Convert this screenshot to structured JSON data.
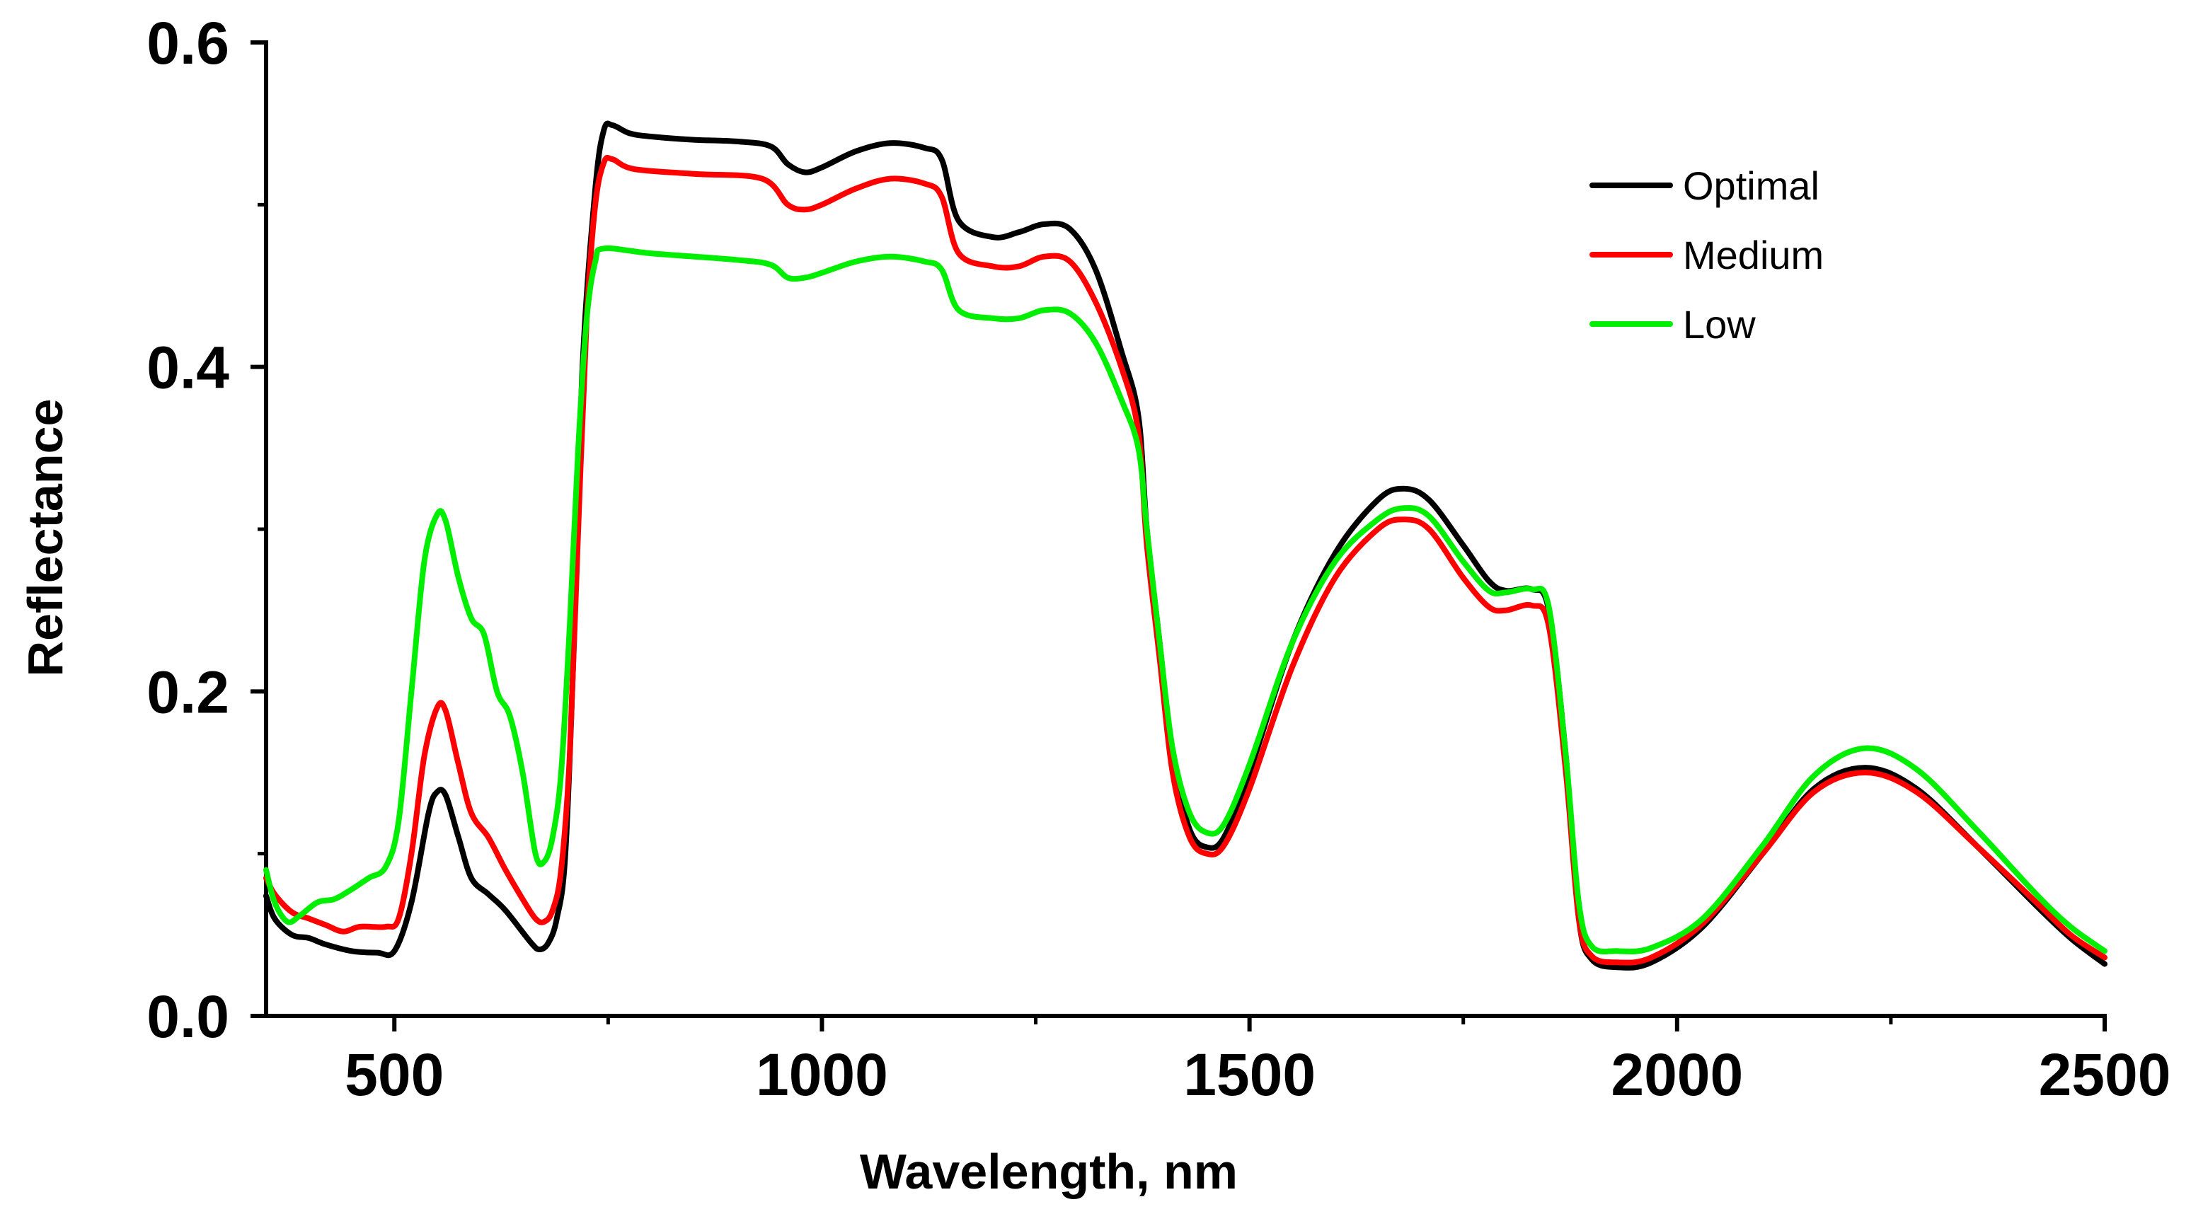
{
  "chart_data": {
    "type": "line",
    "title": "",
    "xlabel": "Wavelength, nm",
    "ylabel": "Reflectance",
    "xlim": [
      350,
      2500
    ],
    "ylim": [
      0.0,
      0.6
    ],
    "grid": false,
    "legend_position": "top-right",
    "x_ticks": [
      500,
      1000,
      1500,
      2000,
      2500
    ],
    "x_tick_labels": [
      "500",
      "1000",
      "1500",
      "2000",
      "2500"
    ],
    "x_minor_ticks": [
      750,
      1250,
      1750,
      2250
    ],
    "y_ticks": [
      0.0,
      0.2,
      0.4,
      0.6
    ],
    "y_tick_labels": [
      "0.0",
      "0.2",
      "0.4",
      "0.6"
    ],
    "y_minor_ticks": [
      0.1,
      0.3,
      0.5
    ],
    "series": [
      {
        "name": "Optimal",
        "color": "#000000",
        "points": [
          [
            350,
            0.074
          ],
          [
            360,
            0.06
          ],
          [
            380,
            0.05
          ],
          [
            400,
            0.048
          ],
          [
            420,
            0.044
          ],
          [
            450,
            0.04
          ],
          [
            480,
            0.039
          ],
          [
            500,
            0.04
          ],
          [
            520,
            0.07
          ],
          [
            540,
            0.125
          ],
          [
            550,
            0.138
          ],
          [
            560,
            0.136
          ],
          [
            575,
            0.11
          ],
          [
            590,
            0.085
          ],
          [
            610,
            0.075
          ],
          [
            630,
            0.065
          ],
          [
            660,
            0.045
          ],
          [
            670,
            0.041
          ],
          [
            680,
            0.045
          ],
          [
            690,
            0.06
          ],
          [
            700,
            0.1
          ],
          [
            710,
            0.23
          ],
          [
            720,
            0.4
          ],
          [
            735,
            0.51
          ],
          [
            745,
            0.546
          ],
          [
            755,
            0.549
          ],
          [
            775,
            0.544
          ],
          [
            800,
            0.542
          ],
          [
            850,
            0.54
          ],
          [
            900,
            0.539
          ],
          [
            940,
            0.536
          ],
          [
            960,
            0.525
          ],
          [
            980,
            0.52
          ],
          [
            1000,
            0.523
          ],
          [
            1040,
            0.533
          ],
          [
            1080,
            0.538
          ],
          [
            1120,
            0.535
          ],
          [
            1140,
            0.528
          ],
          [
            1160,
            0.49
          ],
          [
            1200,
            0.48
          ],
          [
            1230,
            0.483
          ],
          [
            1260,
            0.488
          ],
          [
            1290,
            0.485
          ],
          [
            1320,
            0.46
          ],
          [
            1350,
            0.41
          ],
          [
            1370,
            0.37
          ],
          [
            1380,
            0.3
          ],
          [
            1395,
            0.23
          ],
          [
            1410,
            0.16
          ],
          [
            1430,
            0.115
          ],
          [
            1450,
            0.104
          ],
          [
            1470,
            0.11
          ],
          [
            1500,
            0.15
          ],
          [
            1550,
            0.23
          ],
          [
            1600,
            0.285
          ],
          [
            1650,
            0.318
          ],
          [
            1680,
            0.325
          ],
          [
            1710,
            0.318
          ],
          [
            1750,
            0.29
          ],
          [
            1780,
            0.268
          ],
          [
            1800,
            0.262
          ],
          [
            1830,
            0.263
          ],
          [
            1850,
            0.25
          ],
          [
            1870,
            0.16
          ],
          [
            1885,
            0.06
          ],
          [
            1900,
            0.035
          ],
          [
            1930,
            0.03
          ],
          [
            1970,
            0.033
          ],
          [
            2030,
            0.055
          ],
          [
            2100,
            0.1
          ],
          [
            2160,
            0.14
          ],
          [
            2220,
            0.153
          ],
          [
            2280,
            0.14
          ],
          [
            2350,
            0.105
          ],
          [
            2420,
            0.068
          ],
          [
            2460,
            0.048
          ],
          [
            2500,
            0.032
          ]
        ]
      },
      {
        "name": "Medium",
        "color": "#ff0000",
        "points": [
          [
            350,
            0.085
          ],
          [
            360,
            0.075
          ],
          [
            380,
            0.064
          ],
          [
            400,
            0.06
          ],
          [
            420,
            0.056
          ],
          [
            440,
            0.052
          ],
          [
            460,
            0.055
          ],
          [
            490,
            0.055
          ],
          [
            505,
            0.06
          ],
          [
            520,
            0.1
          ],
          [
            535,
            0.16
          ],
          [
            550,
            0.19
          ],
          [
            560,
            0.188
          ],
          [
            575,
            0.155
          ],
          [
            590,
            0.125
          ],
          [
            610,
            0.11
          ],
          [
            630,
            0.09
          ],
          [
            650,
            0.072
          ],
          [
            665,
            0.06
          ],
          [
            675,
            0.058
          ],
          [
            685,
            0.065
          ],
          [
            695,
            0.09
          ],
          [
            705,
            0.16
          ],
          [
            715,
            0.3
          ],
          [
            725,
            0.43
          ],
          [
            735,
            0.5
          ],
          [
            745,
            0.526
          ],
          [
            755,
            0.528
          ],
          [
            780,
            0.522
          ],
          [
            850,
            0.519
          ],
          [
            930,
            0.516
          ],
          [
            960,
            0.5
          ],
          [
            980,
            0.497
          ],
          [
            1000,
            0.5
          ],
          [
            1040,
            0.51
          ],
          [
            1080,
            0.516
          ],
          [
            1120,
            0.513
          ],
          [
            1140,
            0.505
          ],
          [
            1160,
            0.47
          ],
          [
            1200,
            0.462
          ],
          [
            1230,
            0.462
          ],
          [
            1260,
            0.468
          ],
          [
            1290,
            0.465
          ],
          [
            1320,
            0.44
          ],
          [
            1350,
            0.4
          ],
          [
            1370,
            0.36
          ],
          [
            1380,
            0.29
          ],
          [
            1395,
            0.22
          ],
          [
            1410,
            0.15
          ],
          [
            1430,
            0.11
          ],
          [
            1450,
            0.1
          ],
          [
            1470,
            0.105
          ],
          [
            1500,
            0.14
          ],
          [
            1550,
            0.215
          ],
          [
            1600,
            0.27
          ],
          [
            1650,
            0.3
          ],
          [
            1680,
            0.306
          ],
          [
            1710,
            0.3
          ],
          [
            1750,
            0.27
          ],
          [
            1780,
            0.252
          ],
          [
            1800,
            0.25
          ],
          [
            1830,
            0.253
          ],
          [
            1850,
            0.24
          ],
          [
            1870,
            0.15
          ],
          [
            1885,
            0.06
          ],
          [
            1900,
            0.037
          ],
          [
            1930,
            0.033
          ],
          [
            1970,
            0.036
          ],
          [
            2030,
            0.057
          ],
          [
            2100,
            0.1
          ],
          [
            2160,
            0.138
          ],
          [
            2220,
            0.15
          ],
          [
            2280,
            0.138
          ],
          [
            2350,
            0.105
          ],
          [
            2420,
            0.07
          ],
          [
            2460,
            0.05
          ],
          [
            2500,
            0.036
          ]
        ]
      },
      {
        "name": "Low",
        "color": "#00ee00",
        "points": [
          [
            350,
            0.09
          ],
          [
            360,
            0.07
          ],
          [
            375,
            0.058
          ],
          [
            390,
            0.062
          ],
          [
            410,
            0.07
          ],
          [
            430,
            0.072
          ],
          [
            450,
            0.078
          ],
          [
            470,
            0.085
          ],
          [
            490,
            0.092
          ],
          [
            505,
            0.12
          ],
          [
            520,
            0.2
          ],
          [
            535,
            0.28
          ],
          [
            550,
            0.309
          ],
          [
            560,
            0.305
          ],
          [
            575,
            0.27
          ],
          [
            590,
            0.245
          ],
          [
            605,
            0.235
          ],
          [
            620,
            0.2
          ],
          [
            635,
            0.185
          ],
          [
            650,
            0.15
          ],
          [
            665,
            0.1
          ],
          [
            675,
            0.095
          ],
          [
            685,
            0.11
          ],
          [
            695,
            0.15
          ],
          [
            705,
            0.24
          ],
          [
            715,
            0.35
          ],
          [
            725,
            0.43
          ],
          [
            735,
            0.465
          ],
          [
            745,
            0.473
          ],
          [
            800,
            0.47
          ],
          [
            900,
            0.466
          ],
          [
            940,
            0.463
          ],
          [
            960,
            0.455
          ],
          [
            980,
            0.455
          ],
          [
            1000,
            0.458
          ],
          [
            1040,
            0.465
          ],
          [
            1080,
            0.468
          ],
          [
            1120,
            0.465
          ],
          [
            1140,
            0.46
          ],
          [
            1160,
            0.435
          ],
          [
            1200,
            0.43
          ],
          [
            1230,
            0.43
          ],
          [
            1260,
            0.435
          ],
          [
            1290,
            0.433
          ],
          [
            1320,
            0.415
          ],
          [
            1350,
            0.38
          ],
          [
            1370,
            0.35
          ],
          [
            1380,
            0.3
          ],
          [
            1395,
            0.23
          ],
          [
            1410,
            0.165
          ],
          [
            1430,
            0.125
          ],
          [
            1450,
            0.113
          ],
          [
            1470,
            0.118
          ],
          [
            1500,
            0.155
          ],
          [
            1550,
            0.23
          ],
          [
            1600,
            0.28
          ],
          [
            1650,
            0.306
          ],
          [
            1680,
            0.313
          ],
          [
            1710,
            0.308
          ],
          [
            1750,
            0.28
          ],
          [
            1780,
            0.262
          ],
          [
            1800,
            0.261
          ],
          [
            1830,
            0.263
          ],
          [
            1850,
            0.252
          ],
          [
            1870,
            0.16
          ],
          [
            1885,
            0.07
          ],
          [
            1900,
            0.043
          ],
          [
            1930,
            0.04
          ],
          [
            1970,
            0.042
          ],
          [
            2030,
            0.06
          ],
          [
            2100,
            0.105
          ],
          [
            2160,
            0.148
          ],
          [
            2220,
            0.165
          ],
          [
            2280,
            0.152
          ],
          [
            2350,
            0.115
          ],
          [
            2420,
            0.075
          ],
          [
            2460,
            0.055
          ],
          [
            2500,
            0.04
          ]
        ]
      }
    ]
  }
}
